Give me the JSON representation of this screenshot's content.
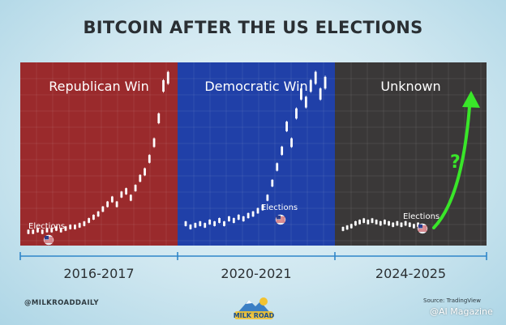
{
  "title": "BITCOIN AFTER THE US ELECTIONS",
  "footer": {
    "handle": "@MILKROADDAILY",
    "logo_text": "MILK ROAD",
    "source": "Source: TradingView",
    "watermark": "@AI Magazine"
  },
  "chart_data": {
    "type": "bar",
    "title": "BITCOIN AFTER THE US ELECTIONS",
    "periods": [
      {
        "label": "Republican Win",
        "range": "2016-2017",
        "color": "#9a2a2c",
        "marker": "Elections",
        "candles": [
          0.05,
          0.05,
          0.06,
          0.05,
          0.06,
          0.06,
          0.07,
          0.06,
          0.07,
          0.08,
          0.08,
          0.09,
          0.1,
          0.12,
          0.14,
          0.16,
          0.19,
          0.22,
          0.25,
          0.22,
          0.28,
          0.3,
          0.26,
          0.32,
          0.38,
          0.42,
          0.5,
          0.6,
          0.75,
          0.95,
          1.0
        ]
      },
      {
        "label": "Democratic Win",
        "range": "2020-2021",
        "color": "#2040a8",
        "marker": "Elections",
        "candles": [
          0.1,
          0.08,
          0.09,
          0.1,
          0.09,
          0.11,
          0.1,
          0.12,
          0.1,
          0.13,
          0.12,
          0.14,
          0.13,
          0.15,
          0.16,
          0.18,
          0.2,
          0.26,
          0.35,
          0.45,
          0.55,
          0.7,
          0.6,
          0.78,
          0.9,
          0.85,
          0.95,
          1.0,
          0.9,
          0.97
        ]
      },
      {
        "label": "Unknown",
        "range": "2024-2025",
        "color": "#3a3838",
        "marker": "Elections",
        "candles": [
          0.08,
          0.09,
          0.1,
          0.12,
          0.13,
          0.14,
          0.13,
          0.14,
          0.13,
          0.12,
          0.13,
          0.12,
          0.11,
          0.12,
          0.11,
          0.12,
          0.11,
          0.1,
          0.11,
          0.1
        ],
        "annotation": "?"
      }
    ]
  }
}
